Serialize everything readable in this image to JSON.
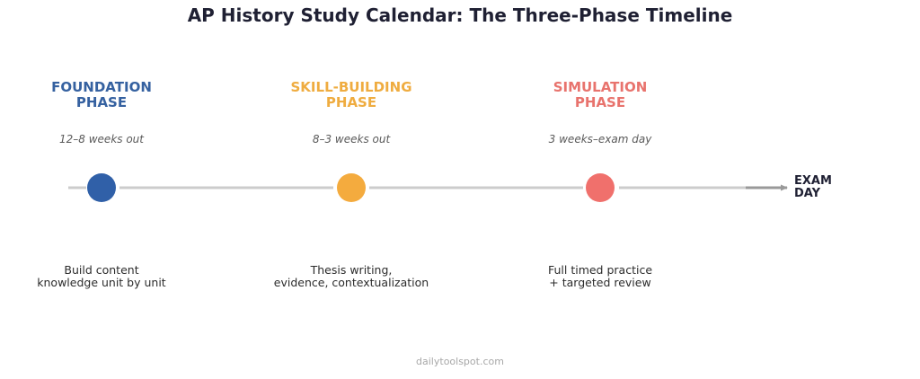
{
  "title": "AP History Study Calendar: The Three-Phase Timeline",
  "phases": [
    {
      "name": "FOUNDATION\nPHASE",
      "window": "12–8 weeks out",
      "description": "Build content\nknowledge unit by unit",
      "color": "#3060a8",
      "name_color": "#3561a0"
    },
    {
      "name": "SKILL-BUILDING\nPHASE",
      "window": "8–3 weeks out",
      "description": "Thesis writing,\nevidence, contextualization",
      "color": "#f4ab3e",
      "name_color": "#efac40"
    },
    {
      "name": "SIMULATION\nPHASE",
      "window": "3 weeks–exam day",
      "description": "Full timed practice\n+ targeted review",
      "color": "#f0706c",
      "name_color": "#e8736d"
    }
  ],
  "end_marker": {
    "label": "EXAM\nDAY",
    "arrow_color": "#999999"
  },
  "line_color": "#cccccc",
  "footer": "dailytoolspot.com"
}
